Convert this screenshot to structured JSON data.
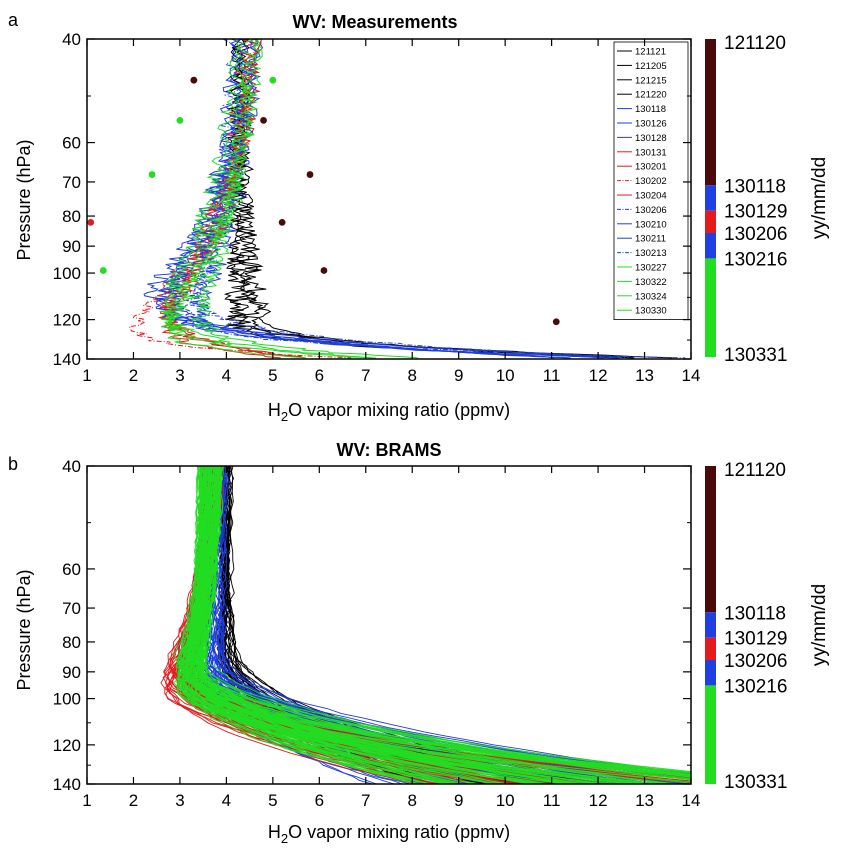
{
  "chart_data": [
    {
      "panel": "a",
      "type": "line",
      "title": "WV: Measurements",
      "xlabel_main": "H",
      "xlabel_sub": "2",
      "xlabel_rest": "O vapor mixing ratio (ppmv)",
      "ylabel": "Pressure (hPa)",
      "xlim": [
        1,
        14
      ],
      "ylim": [
        40,
        140
      ],
      "y_scale": "log",
      "y_reversed": true,
      "x_ticks": [
        1,
        2,
        3,
        4,
        5,
        6,
        7,
        8,
        9,
        10,
        11,
        12,
        13,
        14
      ],
      "y_ticks": [
        40,
        60,
        70,
        80,
        90,
        100,
        120,
        140
      ],
      "legend": [
        {
          "label": "121121",
          "color": "#000000",
          "dash": "solid"
        },
        {
          "label": "121205",
          "color": "#000000",
          "dash": "solid"
        },
        {
          "label": "121215",
          "color": "#000000",
          "dash": "solid"
        },
        {
          "label": "121220",
          "color": "#000000",
          "dash": "solid"
        },
        {
          "label": "130118",
          "color": "#1f3fe0",
          "dash": "solid"
        },
        {
          "label": "130126",
          "color": "#1f3fe0",
          "dash": "solid"
        },
        {
          "label": "130128",
          "color": "#1f3fe0",
          "dash": "solid"
        },
        {
          "label": "130131",
          "color": "#e41a1c",
          "dash": "solid"
        },
        {
          "label": "130201",
          "color": "#e41a1c",
          "dash": "solid"
        },
        {
          "label": "130202",
          "color": "#e41a1c",
          "dash": "dashdot"
        },
        {
          "label": "130204",
          "color": "#e41a1c",
          "dash": "solid"
        },
        {
          "label": "130206",
          "color": "#1f3fe0",
          "dash": "dashdot"
        },
        {
          "label": "130210",
          "color": "#1f3fe0",
          "dash": "solid"
        },
        {
          "label": "130211",
          "color": "#1f3fe0",
          "dash": "solid"
        },
        {
          "label": "130213",
          "color": "#1f3fe0",
          "dash": "dashdot"
        },
        {
          "label": "130227",
          "color": "#22dd22",
          "dash": "solid"
        },
        {
          "label": "130322",
          "color": "#22dd22",
          "dash": "solid"
        },
        {
          "label": "130324",
          "color": "#22dd22",
          "dash": "solid"
        },
        {
          "label": "130330",
          "color": "#22dd22",
          "dash": "solid"
        }
      ],
      "points": [
        {
          "x": 3.3,
          "y": 47,
          "color": "#4a0a0a"
        },
        {
          "x": 4.8,
          "y": 55,
          "color": "#4a0a0a"
        },
        {
          "x": 5.8,
          "y": 68,
          "color": "#4a0a0a"
        },
        {
          "x": 5.2,
          "y": 82,
          "color": "#4a0a0a"
        },
        {
          "x": 6.1,
          "y": 99,
          "color": "#4a0a0a"
        },
        {
          "x": 11.1,
          "y": 121,
          "color": "#4a0a0a"
        },
        {
          "x": 5.0,
          "y": 47,
          "color": "#22dd22"
        },
        {
          "x": 3.0,
          "y": 55,
          "color": "#22dd22"
        },
        {
          "x": 2.4,
          "y": 68,
          "color": "#22dd22"
        },
        {
          "x": 1.35,
          "y": 99,
          "color": "#22dd22"
        },
        {
          "x": 1.08,
          "y": 82,
          "color": "#e41a1c"
        }
      ],
      "colorbar": {
        "label": "yy/mm/dd",
        "ticks": [
          "121120",
          "130118",
          "130129",
          "130206",
          "130216",
          "130331"
        ],
        "segments": [
          {
            "color": "#4a0a0a",
            "from": 0.0,
            "to": 0.46
          },
          {
            "color": "#1f3fe0",
            "from": 0.46,
            "to": 0.54
          },
          {
            "color": "#e41a1c",
            "from": 0.54,
            "to": 0.61
          },
          {
            "color": "#1f3fe0",
            "from": 0.61,
            "to": 0.69
          },
          {
            "color": "#22dd22",
            "from": 0.69,
            "to": 1.0
          }
        ],
        "tick_positions": [
          0.0,
          0.46,
          0.54,
          0.61,
          0.69,
          1.0
        ]
      }
    },
    {
      "panel": "b",
      "type": "line",
      "title": "WV: BRAMS",
      "xlabel_main": "H",
      "xlabel_sub": "2",
      "xlabel_rest": "O vapor mixing ratio (ppmv)",
      "ylabel": "Pressure (hPa)",
      "xlim": [
        1,
        14
      ],
      "ylim": [
        40,
        140
      ],
      "y_scale": "log",
      "y_reversed": true,
      "x_ticks": [
        1,
        2,
        3,
        4,
        5,
        6,
        7,
        8,
        9,
        10,
        11,
        12,
        13,
        14
      ],
      "y_ticks": [
        40,
        60,
        70,
        80,
        90,
        100,
        120,
        140
      ],
      "colorbar": {
        "label": "yy/mm/dd",
        "ticks": [
          "121120",
          "130118",
          "130129",
          "130206",
          "130216",
          "130331"
        ],
        "segments": [
          {
            "color": "#4a0a0a",
            "from": 0.0,
            "to": 0.46
          },
          {
            "color": "#1f3fe0",
            "from": 0.46,
            "to": 0.54
          },
          {
            "color": "#e41a1c",
            "from": 0.54,
            "to": 0.61
          },
          {
            "color": "#1f3fe0",
            "from": 0.61,
            "to": 0.69
          },
          {
            "color": "#22dd22",
            "from": 0.69,
            "to": 1.0
          }
        ],
        "tick_positions": [
          0.0,
          0.46,
          0.54,
          0.61,
          0.69,
          1.0
        ]
      }
    }
  ]
}
